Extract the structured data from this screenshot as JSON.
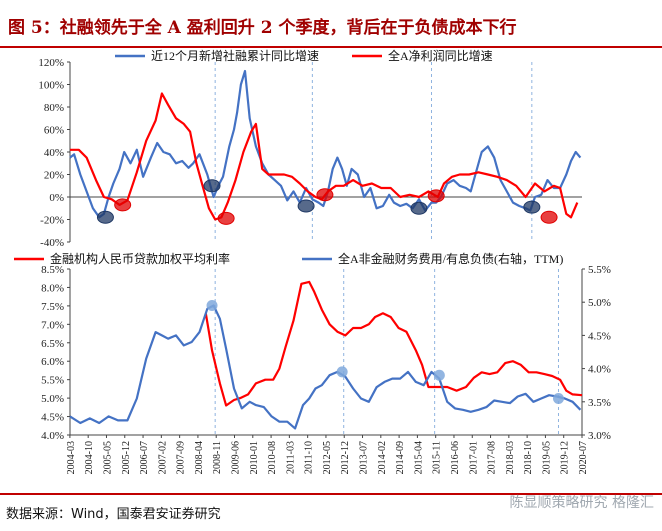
{
  "header": {
    "title": "图 5：社融领先于全 A 盈利回升 2 个季度，背后在于负债成本下行"
  },
  "footer": {
    "source": "数据来源：Wind，国泰君安证券研究",
    "watermark": "陈显顺策略研究",
    "watermark2": "格隆汇"
  },
  "colors": {
    "blue": "#4472c4",
    "red": "#ff0000",
    "accent": "#c00000",
    "marker_blue": "#1f3864"
  },
  "chart_data": [
    {
      "type": "line",
      "legend": [
        "近12个月新增社融累计同比增速",
        "全A净利润同比增速"
      ],
      "y_ticks": [
        "120%",
        "100%",
        "80%",
        "60%",
        "40%",
        "20%",
        "0%",
        "-20%",
        "-40%"
      ],
      "ylim": [
        -40,
        120
      ],
      "x_range": [
        2004.17,
        2020.5
      ],
      "series": [
        {
          "name": "近12个月新增社融累计同比增速",
          "color": "#4472c4",
          "x": [
            2004.17,
            2004.3,
            2004.5,
            2004.7,
            2004.9,
            2005.1,
            2005.25,
            2005.4,
            2005.55,
            2005.75,
            2005.9,
            2006.1,
            2006.3,
            2006.5,
            2006.75,
            2006.95,
            2007.15,
            2007.35,
            2007.55,
            2007.75,
            2007.95,
            2008.1,
            2008.3,
            2008.55,
            2008.75,
            2008.9,
            2009.05,
            2009.25,
            2009.4,
            2009.5,
            2009.62,
            2009.75,
            2009.9,
            2010.1,
            2010.3,
            2010.5,
            2010.7,
            2010.9,
            2011.1,
            2011.3,
            2011.5,
            2011.7,
            2011.9,
            2012.1,
            2012.25,
            2012.4,
            2012.55,
            2012.7,
            2012.85,
            2013.0,
            2013.15,
            2013.35,
            2013.55,
            2013.75,
            2013.95,
            2014.15,
            2014.35,
            2014.5,
            2014.7,
            2014.9,
            2015.1,
            2015.3,
            2015.5,
            2015.7,
            2015.85,
            2016.0,
            2016.2,
            2016.4,
            2016.6,
            2016.8,
            2016.95,
            2017.1,
            2017.3,
            2017.5,
            2017.7,
            2017.9,
            2018.1,
            2018.3,
            2018.5,
            2018.7,
            2018.85,
            2019.0,
            2019.2,
            2019.4,
            2019.6,
            2019.8,
            2020.0,
            2020.15,
            2020.3,
            2020.45
          ],
          "y": [
            35,
            38,
            20,
            5,
            -10,
            -18,
            -15,
            0,
            12,
            25,
            40,
            30,
            42,
            18,
            35,
            48,
            40,
            38,
            30,
            32,
            26,
            30,
            38,
            20,
            0,
            10,
            18,
            45,
            60,
            75,
            100,
            112,
            70,
            45,
            30,
            20,
            15,
            10,
            -3,
            5,
            -5,
            8,
            -2,
            -5,
            -8,
            5,
            25,
            35,
            25,
            10,
            25,
            20,
            0,
            8,
            -10,
            -8,
            2,
            -5,
            -8,
            -6,
            -10,
            -2,
            -12,
            -5,
            -5,
            0,
            12,
            15,
            10,
            8,
            5,
            20,
            40,
            45,
            35,
            15,
            5,
            -5,
            -8,
            -10,
            -12,
            0,
            2,
            15,
            8,
            8,
            20,
            32,
            40,
            35
          ]
        },
        {
          "name": "全A净利润同比增速",
          "color": "#ff0000",
          "x": [
            2004.17,
            2004.45,
            2004.7,
            2005.0,
            2005.25,
            2005.5,
            2005.75,
            2006.0,
            2006.3,
            2006.6,
            2006.9,
            2007.1,
            2007.3,
            2007.55,
            2007.8,
            2008.0,
            2008.2,
            2008.4,
            2008.6,
            2008.8,
            2009.0,
            2009.2,
            2009.45,
            2009.7,
            2009.95,
            2010.1,
            2010.3,
            2010.5,
            2010.75,
            2011.0,
            2011.25,
            2011.5,
            2011.75,
            2012.0,
            2012.2,
            2012.4,
            2012.65,
            2012.9,
            2013.2,
            2013.5,
            2013.8,
            2014.1,
            2014.4,
            2014.7,
            2015.0,
            2015.3,
            2015.6,
            2015.9,
            2016.1,
            2016.35,
            2016.6,
            2016.9,
            2017.2,
            2017.5,
            2017.8,
            2018.1,
            2018.4,
            2018.7,
            2019.0,
            2019.3,
            2019.6,
            2019.8,
            2020.0,
            2020.15,
            2020.35
          ],
          "y": [
            42,
            42,
            35,
            15,
            0,
            -2,
            -7,
            -3,
            22,
            50,
            68,
            92,
            82,
            70,
            65,
            58,
            30,
            10,
            -10,
            -20,
            -18,
            -5,
            15,
            40,
            58,
            65,
            25,
            20,
            20,
            20,
            18,
            12,
            5,
            0,
            -2,
            5,
            10,
            10,
            15,
            10,
            12,
            8,
            8,
            0,
            2,
            0,
            5,
            0,
            12,
            18,
            20,
            20,
            22,
            20,
            18,
            15,
            10,
            0,
            12,
            5,
            10,
            8,
            -15,
            -18,
            -5
          ]
        }
      ],
      "markers": [
        {
          "color": "blue",
          "x": 2005.3,
          "y": -18
        },
        {
          "color": "red",
          "x": 2005.85,
          "y": -7
        },
        {
          "color": "blue",
          "x": 2008.7,
          "y": 10
        },
        {
          "color": "red",
          "x": 2009.15,
          "y": -19
        },
        {
          "color": "blue",
          "x": 2011.7,
          "y": -8
        },
        {
          "color": "red",
          "x": 2012.3,
          "y": 2
        },
        {
          "color": "blue",
          "x": 2015.3,
          "y": -10
        },
        {
          "color": "red",
          "x": 2015.85,
          "y": 1
        },
        {
          "color": "blue",
          "x": 2018.9,
          "y": -9
        },
        {
          "color": "red",
          "x": 2019.45,
          "y": -18
        }
      ],
      "vlines": [
        2008.8,
        2011.9,
        2015.7,
        2018.9
      ]
    },
    {
      "type": "line",
      "legend": [
        "金融机构人民币贷款加权平均利率",
        "全A非金融财务费用/有息负债(右轴，TTM)"
      ],
      "y_ticks_left": [
        "8.5%",
        "8.0%",
        "7.5%",
        "7.0%",
        "6.5%",
        "6.0%",
        "5.5%",
        "5.0%",
        "4.5%",
        "4.0%"
      ],
      "ylim_left": [
        4.0,
        8.5
      ],
      "y_ticks_right": [
        "5.5%",
        "5.0%",
        "4.5%",
        "4.0%",
        "3.5%",
        "3.0%"
      ],
      "ylim_right": [
        3.0,
        5.5
      ],
      "x_range": [
        2004.17,
        2020.5
      ],
      "x_ticks": [
        "2004-03",
        "2004-10",
        "2005-05",
        "2005-12",
        "2006-07",
        "2007-02",
        "2007-09",
        "2008-04",
        "2008-11",
        "2009-06",
        "2010-01",
        "2010-08",
        "2011-03",
        "2011-10",
        "2012-05",
        "2012-12",
        "2013-07",
        "2014-02",
        "2014-09",
        "2015-04",
        "2015-11",
        "2016-06",
        "2017-01",
        "2017-08",
        "2018-03",
        "2018-10",
        "2019-05",
        "2019-12",
        "2020-07"
      ],
      "series": [
        {
          "name": "金融机构人民币贷款加权平均利率",
          "axis": "left",
          "color": "#ff0000",
          "x": [
            2008.5,
            2008.7,
            2008.95,
            2009.15,
            2009.4,
            2009.6,
            2009.85,
            2010.1,
            2010.4,
            2010.65,
            2010.85,
            2011.05,
            2011.3,
            2011.55,
            2011.8,
            2011.95,
            2012.2,
            2012.45,
            2012.7,
            2012.95,
            2013.2,
            2013.45,
            2013.7,
            2013.9,
            2014.15,
            2014.4,
            2014.65,
            2014.9,
            2015.2,
            2015.4,
            2015.6,
            2015.9,
            2016.2,
            2016.5,
            2016.8,
            2017.05,
            2017.3,
            2017.55,
            2017.8,
            2018.05,
            2018.3,
            2018.55,
            2018.8,
            2019.05,
            2019.3,
            2019.55,
            2019.8,
            2020.0,
            2020.2,
            2020.5
          ],
          "y": [
            7.3,
            6.3,
            5.4,
            4.8,
            4.95,
            5.0,
            5.1,
            5.4,
            5.5,
            5.5,
            5.8,
            6.4,
            7.1,
            8.1,
            8.15,
            7.9,
            7.4,
            7.0,
            6.8,
            6.7,
            6.9,
            6.9,
            7.0,
            7.2,
            7.3,
            7.2,
            6.9,
            6.8,
            6.3,
            5.9,
            5.3,
            5.3,
            5.3,
            5.2,
            5.3,
            5.55,
            5.7,
            5.65,
            5.7,
            5.95,
            6.0,
            5.9,
            5.7,
            5.7,
            5.65,
            5.6,
            5.5,
            5.2,
            5.1,
            5.08
          ]
        },
        {
          "name": "全A非金融财务费用/有息负债(右轴，TTM)",
          "axis": "right",
          "color": "#4472c4",
          "x": [
            2004.17,
            2004.5,
            2004.8,
            2005.1,
            2005.4,
            2005.7,
            2006.0,
            2006.3,
            2006.6,
            2006.9,
            2007.1,
            2007.3,
            2007.55,
            2007.8,
            2008.05,
            2008.3,
            2008.55,
            2008.75,
            2008.95,
            2009.15,
            2009.4,
            2009.65,
            2009.9,
            2010.1,
            2010.35,
            2010.6,
            2010.85,
            2011.1,
            2011.35,
            2011.6,
            2011.8,
            2012.0,
            2012.2,
            2012.45,
            2012.7,
            2012.95,
            2013.2,
            2013.45,
            2013.7,
            2013.95,
            2014.2,
            2014.45,
            2014.7,
            2014.95,
            2015.2,
            2015.45,
            2015.7,
            2015.95,
            2016.2,
            2016.45,
            2016.7,
            2016.95,
            2017.2,
            2017.45,
            2017.7,
            2017.95,
            2018.2,
            2018.45,
            2018.7,
            2018.95,
            2019.2,
            2019.45,
            2019.7,
            2019.95,
            2020.2,
            2020.45
          ],
          "y": [
            3.28,
            3.18,
            3.25,
            3.18,
            3.28,
            3.22,
            3.22,
            3.55,
            4.15,
            4.55,
            4.5,
            4.45,
            4.5,
            4.35,
            4.4,
            4.55,
            4.9,
            4.95,
            4.75,
            4.3,
            3.7,
            3.4,
            3.5,
            3.45,
            3.42,
            3.28,
            3.2,
            3.2,
            3.1,
            3.45,
            3.55,
            3.7,
            3.75,
            3.9,
            3.95,
            3.88,
            3.7,
            3.55,
            3.5,
            3.72,
            3.8,
            3.85,
            3.85,
            3.95,
            3.8,
            3.75,
            3.95,
            3.85,
            3.5,
            3.4,
            3.38,
            3.35,
            3.38,
            3.42,
            3.52,
            3.5,
            3.48,
            3.58,
            3.62,
            3.5,
            3.55,
            3.6,
            3.58,
            3.55,
            3.5,
            3.38
          ]
        }
      ],
      "markers": [
        {
          "x": 2008.7,
          "y": 4.95
        },
        {
          "x": 2012.85,
          "y": 3.95
        },
        {
          "x": 2015.95,
          "y": 3.9
        },
        {
          "x": 2019.75,
          "y": 3.55
        }
      ],
      "vlines": [
        2008.8,
        2012.9,
        2015.8,
        2019.75
      ]
    }
  ]
}
